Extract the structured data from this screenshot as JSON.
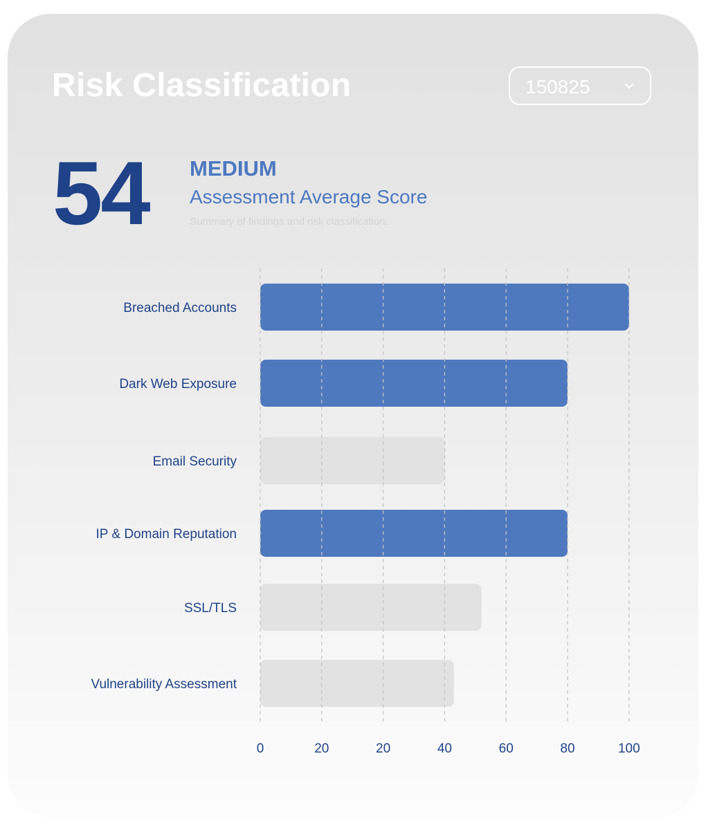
{
  "header": {
    "title": "Risk Classification",
    "selector": {
      "value": "150825",
      "icon": "chevron-down-icon"
    }
  },
  "summary": {
    "score": "54",
    "level": "MEDIUM",
    "subtitle": "Assessment Average Score",
    "description": "Summary of findings and risk classification."
  },
  "colors": {
    "highlight": "#4f79bf",
    "muted": "#e2e2e2",
    "text": "#1f4288"
  },
  "chart_data": {
    "type": "bar",
    "orientation": "horizontal",
    "grid": true,
    "x_ticks": [
      "0",
      "20",
      "20",
      "40",
      "60",
      "80",
      "100"
    ],
    "categories": [
      "Breached Accounts",
      "Dark Web Exposure",
      "Email Security",
      "IP & Domain Reputation",
      "SSL/TLS",
      "Vulnerability Assessment"
    ],
    "values": [
      100,
      80,
      40,
      80,
      52,
      43
    ],
    "highlighted": [
      true,
      true,
      false,
      true,
      false,
      false
    ]
  }
}
